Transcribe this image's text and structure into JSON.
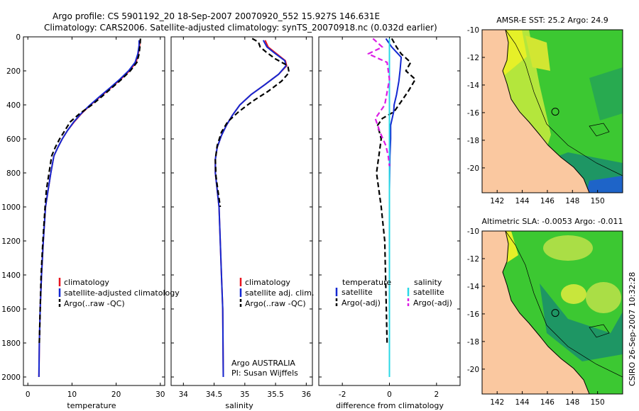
{
  "header": {
    "line1": "Argo profile: CS 5901192_20 18-Sep-2007 20070920_552 15.927S 146.631E",
    "line2": "Climatology: CARS2006. Satellite-adjusted climatology: synTS_20070918.nc (0.032d earlier)"
  },
  "credit": {
    "agency": "Argo AUSTRALIA",
    "pi": "PI: Susan Wijffels",
    "stamp": "CSIRO 26-Sep-2007 10:32:28"
  },
  "colors": {
    "climatology": "#e8141e",
    "satellite": "#1428d2",
    "argo": "#000000",
    "sat_diff_s": "#2ad8e6",
    "argo_diff_s": "#dc1ee6",
    "land": "#fac8a0",
    "ocean_warm": "#e6f028",
    "ocean_mid": "#3cc832",
    "ocean_cool": "#1e9664"
  },
  "chart_data": [
    {
      "type": "line",
      "xlabel": "temperature",
      "ylabel": "",
      "xlim": [
        -1,
        31
      ],
      "ylim": [
        2050,
        0
      ],
      "xticks": [
        0,
        10,
        20,
        30
      ],
      "yticks": [
        0,
        200,
        400,
        600,
        800,
        1000,
        1200,
        1400,
        1600,
        1800,
        2000
      ],
      "legend": {
        "position": "lower-right",
        "entries": [
          "climatology",
          "satellite-adjusted climatology",
          "Argo(..raw -QC)"
        ]
      },
      "series": [
        {
          "name": "climatology",
          "style": "solid",
          "x": [
            25.4,
            25.3,
            25.0,
            24.5,
            23.0,
            21.0,
            18.8,
            16.5,
            14.2,
            12.2,
            10.5,
            9.0,
            7.8,
            6.8,
            5.9,
            5.2,
            4.6,
            4.0,
            3.5,
            3.1,
            2.8,
            2.6,
            2.5
          ],
          "y": [
            20,
            50,
            100,
            150,
            200,
            250,
            300,
            350,
            400,
            450,
            500,
            550,
            600,
            650,
            700,
            800,
            900,
            1000,
            1200,
            1400,
            1600,
            1800,
            2000
          ]
        },
        {
          "name": "satellite-adjusted climatology",
          "style": "solid",
          "x": [
            25.2,
            25.2,
            24.9,
            24.3,
            22.8,
            20.8,
            18.6,
            16.3,
            14.1,
            12.1,
            10.4,
            9.0,
            7.8,
            6.8,
            5.9,
            5.2,
            4.6,
            4.0,
            3.5,
            3.1,
            2.8,
            2.6,
            2.5
          ],
          "y": [
            20,
            50,
            100,
            150,
            200,
            250,
            300,
            350,
            400,
            450,
            500,
            550,
            600,
            650,
            700,
            800,
            900,
            1000,
            1200,
            1400,
            1600,
            1800,
            2000
          ]
        },
        {
          "name": "Argo(..raw -QC)",
          "style": "dashed",
          "x": [
            25.5,
            25.4,
            25.2,
            24.7,
            23.2,
            21.2,
            19.0,
            16.8,
            14.5,
            11.8,
            9.6,
            8.4,
            7.2,
            6.2,
            5.4,
            4.8,
            4.2,
            3.9,
            3.4,
            3.0,
            2.8,
            2.6
          ],
          "y": [
            10,
            50,
            100,
            150,
            200,
            250,
            300,
            350,
            400,
            450,
            500,
            550,
            600,
            650,
            700,
            800,
            900,
            1000,
            1200,
            1400,
            1600,
            1800
          ]
        }
      ]
    },
    {
      "type": "line",
      "xlabel": "salinity",
      "ylabel": "",
      "xlim": [
        33.8,
        36.1
      ],
      "ylim": [
        2050,
        0
      ],
      "xticks": [
        34,
        34.5,
        35,
        35.5,
        36
      ],
      "legend": {
        "position": "lower-right",
        "entries": [
          "climatology",
          "satellite adj. clim.",
          "Argo(..raw -QC)"
        ]
      },
      "series": [
        {
          "name": "climatology",
          "style": "solid",
          "x": [
            35.33,
            35.38,
            35.52,
            35.66,
            35.68,
            35.55,
            35.33,
            35.1,
            34.92,
            34.8,
            34.7,
            34.62,
            34.55,
            34.52,
            34.52,
            34.55,
            34.58,
            34.6,
            34.62,
            34.64,
            34.65
          ],
          "y": [
            20,
            60,
            100,
            140,
            170,
            220,
            280,
            340,
            400,
            460,
            520,
            580,
            650,
            720,
            800,
            900,
            1000,
            1200,
            1400,
            1600,
            2000
          ]
        },
        {
          "name": "satellite adj. clim.",
          "style": "solid",
          "x": [
            35.3,
            35.36,
            35.5,
            35.65,
            35.67,
            35.55,
            35.33,
            35.1,
            34.92,
            34.8,
            34.7,
            34.62,
            34.55,
            34.52,
            34.52,
            34.55,
            34.58,
            34.6,
            34.62,
            34.64,
            34.65
          ],
          "y": [
            20,
            60,
            100,
            140,
            170,
            220,
            280,
            340,
            400,
            460,
            520,
            580,
            650,
            720,
            800,
            900,
            1000,
            1200,
            1400,
            1600,
            2000
          ]
        },
        {
          "name": "Argo(..raw -QC)",
          "style": "dashed",
          "x": [
            35.12,
            35.22,
            35.25,
            35.35,
            35.5,
            35.7,
            35.72,
            35.6,
            35.38,
            35.12,
            34.9,
            34.72,
            34.62,
            34.55,
            34.52,
            34.53,
            34.56,
            34.6
          ],
          "y": [
            10,
            30,
            60,
            90,
            130,
            170,
            210,
            260,
            320,
            380,
            440,
            500,
            560,
            640,
            720,
            820,
            900,
            1000
          ]
        }
      ]
    },
    {
      "type": "line",
      "xlabel": "difference from climatology",
      "ylabel": "",
      "xlim": [
        -3,
        3
      ],
      "ylim": [
        2050,
        0
      ],
      "xticks": [
        -2,
        0,
        2
      ],
      "legend": {
        "position": "lower",
        "groups": [
          {
            "title": "temperature",
            "entries": [
              "satellite",
              "Argo(-adj)"
            ]
          },
          {
            "title": "salinity",
            "entries": [
              "satellite",
              "Argo(-adj)"
            ]
          }
        ]
      },
      "series": [
        {
          "name": "temperature satellite",
          "style": "solid",
          "x": [
            -0.15,
            0.1,
            0.5,
            0.45,
            0.4,
            0.3,
            0.2,
            0.18,
            0.05,
            0.05,
            0.02,
            0,
            0,
            0
          ],
          "y": [
            10,
            60,
            120,
            200,
            260,
            340,
            400,
            440,
            520,
            600,
            700,
            900,
            1400,
            2000
          ]
        },
        {
          "name": "temperature Argo(-adj)",
          "style": "dashed",
          "x": [
            0.1,
            0.3,
            0.5,
            0.9,
            0.7,
            1.1,
            0.8,
            0.5,
            0.2,
            -0.3,
            -0.5,
            -0.35,
            -0.45,
            -0.55,
            -0.45,
            -0.35,
            -0.2,
            -0.1
          ],
          "y": [
            10,
            60,
            100,
            150,
            200,
            250,
            320,
            380,
            440,
            480,
            520,
            600,
            700,
            800,
            900,
            1000,
            1200,
            1800
          ]
        },
        {
          "name": "salinity satellite",
          "style": "solid",
          "x": [
            0,
            0,
            0,
            0,
            0,
            0,
            0,
            0
          ],
          "y": [
            10,
            100,
            300,
            500,
            800,
            1200,
            1600,
            2000
          ]
        },
        {
          "name": "salinity Argo(-adj)",
          "style": "dashed",
          "x": [
            -0.7,
            -0.3,
            -0.9,
            -0.1,
            0,
            -0.2,
            -0.6,
            -0.4,
            -0.15,
            -0.05,
            0
          ],
          "y": [
            10,
            60,
            100,
            150,
            250,
            400,
            480,
            560,
            640,
            700,
            760
          ]
        }
      ]
    },
    {
      "type": "heatmap",
      "title": "AMSR-E SST: 25.2 Argo: 24.9",
      "xlim": [
        140.8,
        152.0
      ],
      "ylim": [
        -21.8,
        -10
      ],
      "xticks": [
        142,
        144,
        146,
        148,
        150
      ],
      "yticks": [
        -10,
        -12,
        -14,
        -16,
        -18,
        -20
      ],
      "marker": {
        "lon": 146.63,
        "lat": -15.93
      }
    },
    {
      "type": "heatmap",
      "title": "Altimetric SLA: -0.0053 Argo: -0.011",
      "xlim": [
        140.8,
        152.0
      ],
      "ylim": [
        -21.8,
        -10
      ],
      "xticks": [
        142,
        144,
        146,
        148,
        150
      ],
      "yticks": [
        -10,
        -12,
        -14,
        -16,
        -18,
        -20
      ],
      "marker": {
        "lon": 146.63,
        "lat": -15.93
      }
    }
  ]
}
